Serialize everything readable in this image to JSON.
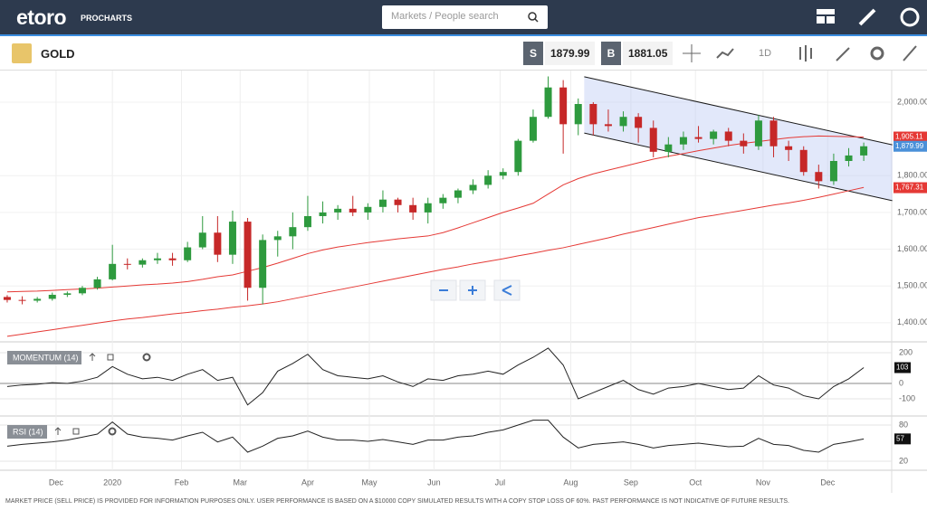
{
  "header": {
    "logo": "etoro",
    "product": "PROCHARTS",
    "search_placeholder": "Markets / People search"
  },
  "toolbar": {
    "instrument": "GOLD",
    "sell_label": "S",
    "sell_price": "1879.99",
    "buy_label": "B",
    "buy_price": "1881.05",
    "interval": "1D"
  },
  "chart_data": {
    "type": "candlestick",
    "xlim": [
      -0.48,
      58.86
    ],
    "xticks": [
      {
        "value": 3.25,
        "label": "Dec"
      },
      {
        "value": 7.0,
        "label": "2020"
      },
      {
        "value": 11.6,
        "label": "Feb"
      },
      {
        "value": 15.5,
        "label": "Mar"
      },
      {
        "value": 20.0,
        "label": "Apr"
      },
      {
        "value": 24.1,
        "label": "May"
      },
      {
        "value": 28.4,
        "label": "Jun"
      },
      {
        "value": 32.8,
        "label": "Jul"
      },
      {
        "value": 37.5,
        "label": "Aug"
      },
      {
        "value": 41.5,
        "label": "Sep"
      },
      {
        "value": 45.8,
        "label": "Oct"
      },
      {
        "value": 50.3,
        "label": "Nov"
      },
      {
        "value": 54.6,
        "label": "Dec"
      }
    ],
    "ylim": [
      1348,
      2086
    ],
    "yticks": [
      {
        "value": 1400,
        "label": "1,400.00"
      },
      {
        "value": 1500,
        "label": "1,500.00"
      },
      {
        "value": 1600,
        "label": "1,600.00"
      },
      {
        "value": 1700,
        "label": "1,700.00"
      },
      {
        "value": 1800,
        "label": "1,800.00"
      },
      {
        "value": 2000,
        "label": "2,000.00"
      }
    ],
    "grid": true,
    "candles": {
      "up_color": "#2e9a3e",
      "down_color": "#c62828",
      "open": [
        1470,
        1462,
        1460,
        1465,
        1476,
        1480,
        1495,
        1518,
        1560,
        1558,
        1570,
        1575,
        1570,
        1605,
        1645,
        1585,
        1675,
        1495,
        1625,
        1635,
        1660,
        1690,
        1700,
        1710,
        1700,
        1715,
        1735,
        1720,
        1700,
        1725,
        1740,
        1760,
        1775,
        1800,
        1810,
        1895,
        1960,
        2040,
        1940,
        1995,
        1940,
        1935,
        1960,
        1930,
        1865,
        1885,
        1905,
        1900,
        1920,
        1895,
        1880,
        1950,
        1880,
        1870,
        1810,
        1785,
        1840,
        1855
      ],
      "high": [
        1475,
        1472,
        1470,
        1482,
        1485,
        1500,
        1525,
        1612,
        1575,
        1575,
        1590,
        1590,
        1620,
        1690,
        1690,
        1705,
        1685,
        1640,
        1650,
        1700,
        1745,
        1730,
        1720,
        1745,
        1725,
        1760,
        1740,
        1740,
        1740,
        1750,
        1765,
        1790,
        1815,
        1820,
        1900,
        1980,
        2070,
        2060,
        2010,
        2000,
        1980,
        1975,
        1970,
        1950,
        1905,
        1920,
        1935,
        1925,
        1930,
        1915,
        1965,
        1960,
        1895,
        1880,
        1830,
        1860,
        1875,
        1890
      ],
      "low": [
        1455,
        1450,
        1455,
        1460,
        1470,
        1475,
        1490,
        1515,
        1545,
        1550,
        1560,
        1555,
        1565,
        1600,
        1565,
        1560,
        1460,
        1450,
        1580,
        1600,
        1650,
        1670,
        1680,
        1690,
        1680,
        1700,
        1700,
        1680,
        1670,
        1710,
        1725,
        1750,
        1765,
        1790,
        1800,
        1890,
        1955,
        1860,
        1910,
        1910,
        1920,
        1920,
        1890,
        1850,
        1850,
        1870,
        1890,
        1885,
        1880,
        1860,
        1870,
        1850,
        1840,
        1800,
        1765,
        1775,
        1825,
        1840
      ],
      "close": [
        1462,
        1460,
        1465,
        1476,
        1480,
        1495,
        1518,
        1560,
        1558,
        1570,
        1575,
        1570,
        1605,
        1645,
        1585,
        1675,
        1495,
        1625,
        1635,
        1660,
        1690,
        1700,
        1710,
        1700,
        1715,
        1735,
        1720,
        1700,
        1725,
        1740,
        1760,
        1775,
        1800,
        1810,
        1895,
        1960,
        2040,
        1940,
        1995,
        1940,
        1935,
        1960,
        1930,
        1865,
        1885,
        1905,
        1900,
        1920,
        1895,
        1880,
        1950,
        1880,
        1870,
        1810,
        1785,
        1840,
        1855,
        1880
      ]
    },
    "lines": [
      {
        "color": "#e53935",
        "values": [
          1484,
          1485,
          1486,
          1488,
          1490,
          1492,
          1494,
          1497,
          1500,
          1503,
          1505,
          1508,
          1512,
          1518,
          1525,
          1530,
          1540,
          1550,
          1562,
          1575,
          1588,
          1598,
          1606,
          1612,
          1618,
          1623,
          1628,
          1632,
          1636,
          1645,
          1658,
          1672,
          1686,
          1700,
          1712,
          1725,
          1750,
          1775,
          1792,
          1805,
          1815,
          1825,
          1835,
          1845,
          1853,
          1860,
          1868,
          1875,
          1882,
          1888,
          1893,
          1898,
          1903,
          1906,
          1908,
          1907,
          1906,
          1905
        ]
      },
      {
        "color": "#e53935",
        "values": [
          1363,
          1369,
          1375,
          1381,
          1387,
          1393,
          1399,
          1405,
          1410,
          1414,
          1419,
          1424,
          1428,
          1433,
          1437,
          1442,
          1446,
          1451,
          1457,
          1465,
          1473,
          1481,
          1489,
          1497,
          1505,
          1513,
          1521,
          1529,
          1537,
          1545,
          1552,
          1560,
          1567,
          1574,
          1582,
          1589,
          1597,
          1604,
          1613,
          1622,
          1631,
          1641,
          1650,
          1659,
          1668,
          1677,
          1686,
          1692,
          1699,
          1706,
          1713,
          1720,
          1726,
          1733,
          1741,
          1750,
          1759,
          1768
        ]
      }
    ],
    "channel": {
      "x": [
        38.4,
        58.9
      ],
      "upper": [
        2069,
        1884
      ],
      "lower": [
        1916,
        1732
      ],
      "color": "#1a1a1a",
      "fill": "rgba(190,205,245,0.45)"
    },
    "price_tags": [
      {
        "value": 1905.11,
        "label": "1,905.11",
        "color": "#e53935"
      },
      {
        "value": 1879.99,
        "label": "1,879.99",
        "color": "#4a90d9"
      },
      {
        "value": 1767.31,
        "label": "1,767.31",
        "color": "#e53935"
      }
    ],
    "momentum": {
      "label": "MOMENTUM (14)",
      "ylim": [
        -212,
        259
      ],
      "yticks": [
        200,
        0,
        -100
      ],
      "color": "#222222",
      "values": [
        -20,
        -10,
        -5,
        5,
        0,
        15,
        40,
        110,
        60,
        30,
        40,
        20,
        60,
        90,
        20,
        40,
        -140,
        -60,
        80,
        130,
        190,
        90,
        50,
        40,
        30,
        50,
        10,
        -20,
        30,
        20,
        50,
        60,
        80,
        60,
        120,
        170,
        230,
        120,
        -100,
        -60,
        -20,
        20,
        -40,
        -70,
        -30,
        -20,
        0,
        -20,
        -40,
        -30,
        50,
        -10,
        -30,
        -80,
        -100,
        -20,
        30,
        103
      ]
    },
    "rsi": {
      "label": "RSI (14)",
      "ylim": [
        5,
        92
      ],
      "yticks": [
        80,
        20
      ],
      "color": "#222222",
      "values": [
        45,
        48,
        50,
        52,
        55,
        60,
        65,
        85,
        65,
        60,
        58,
        55,
        62,
        68,
        52,
        60,
        35,
        45,
        58,
        62,
        70,
        60,
        55,
        55,
        53,
        56,
        52,
        48,
        55,
        55,
        60,
        62,
        68,
        72,
        80,
        88,
        88,
        60,
        42,
        48,
        50,
        52,
        48,
        42,
        46,
        48,
        50,
        47,
        44,
        45,
        58,
        48,
        46,
        38,
        35,
        48,
        52,
        57
      ]
    }
  },
  "footer": {
    "disclaimer": "MARKET PRICE (SELL PRICE) IS PROVIDED FOR INFORMATION PURPOSES ONLY. USER PERFORMANCE IS BASED ON A $10000 COPY SIMULATED RESULTS WITH A COPY STOP LOSS OF 60%. PAST PERFORMANCE IS NOT INDICATIVE OF FUTURE RESULTS."
  }
}
